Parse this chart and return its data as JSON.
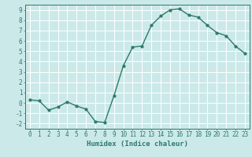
{
  "x": [
    0,
    1,
    2,
    3,
    4,
    5,
    6,
    7,
    8,
    9,
    10,
    11,
    12,
    13,
    14,
    15,
    16,
    17,
    18,
    19,
    20,
    21,
    22,
    23
  ],
  "y": [
    0.3,
    0.2,
    -0.7,
    -0.4,
    0.1,
    -0.3,
    -0.6,
    -1.8,
    -1.9,
    0.7,
    3.6,
    5.4,
    5.5,
    7.5,
    8.4,
    9.0,
    9.1,
    8.5,
    8.3,
    7.5,
    6.8,
    6.5,
    5.5,
    4.8
  ],
  "line_color": "#2d7a6a",
  "marker": "o",
  "markersize": 2.0,
  "linewidth": 1.0,
  "bg_color": "#cce9e9",
  "grid_color": "#ffffff",
  "xlabel": "Humidex (Indice chaleur)",
  "xlim": [
    -0.5,
    23.5
  ],
  "ylim": [
    -2.5,
    9.5
  ],
  "yticks": [
    -2,
    -1,
    0,
    1,
    2,
    3,
    4,
    5,
    6,
    7,
    8,
    9
  ],
  "xticks": [
    0,
    1,
    2,
    3,
    4,
    5,
    6,
    7,
    8,
    9,
    10,
    11,
    12,
    13,
    14,
    15,
    16,
    17,
    18,
    19,
    20,
    21,
    22,
    23
  ],
  "xlabel_fontsize": 6.5,
  "tick_fontsize": 5.5
}
